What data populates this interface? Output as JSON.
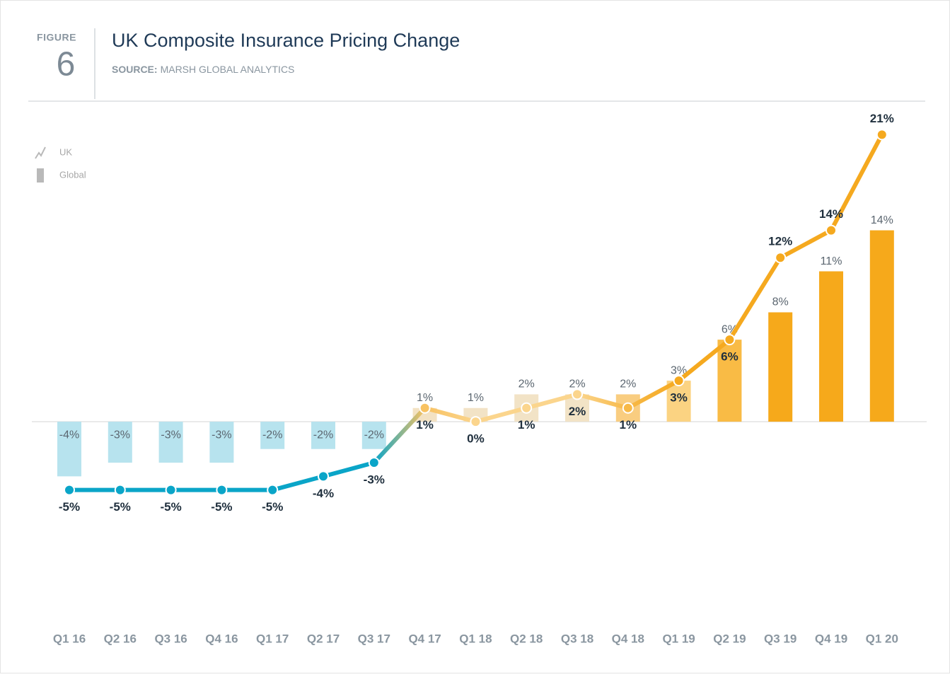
{
  "figure_label": "FIGURE",
  "figure_number": "6",
  "chart_data": {
    "type": "bar_line",
    "title": "UK Composite Insurance Pricing Change",
    "source_label": "SOURCE:",
    "source": "MARSH GLOBAL ANALYTICS",
    "categories": [
      "Q1 16",
      "Q2 16",
      "Q3 16",
      "Q4 16",
      "Q1 17",
      "Q2 17",
      "Q3 17",
      "Q4 17",
      "Q1 18",
      "Q2 18",
      "Q3 18",
      "Q4 18",
      "Q1 19",
      "Q2 19",
      "Q3 19",
      "Q4 19",
      "Q1 20"
    ],
    "series": [
      {
        "name": "UK",
        "kind": "line",
        "color": "#f5a91f",
        "values": [
          -5,
          -5,
          -5,
          -5,
          -5,
          -4,
          -3,
          1,
          0,
          1,
          2,
          1,
          3,
          6,
          12,
          14,
          21
        ],
        "value_labels": [
          "-5%",
          "-5%",
          "-5%",
          "-5%",
          "-5%",
          "-4%",
          "-3%",
          "1%",
          "0%",
          "1%",
          "2%",
          "1%",
          "3%",
          "6%",
          "12%",
          "14%",
          "21%"
        ],
        "point_colors": [
          "#0aa5c8",
          "#0aa5c8",
          "#0aa5c8",
          "#0aa5c8",
          "#0aa5c8",
          "#0aa5c8",
          "#0aa5c8",
          "#f8c262",
          "#fbd58d",
          "#fbd58d",
          "#fbd58d",
          "#f7b948",
          "#f5a91f",
          "#f5a91f",
          "#f5a91f",
          "#f5a91f",
          "#f5a91f"
        ]
      },
      {
        "name": "Global",
        "kind": "bar",
        "color": "#b9b9b9",
        "values": [
          -4,
          -3,
          -3,
          -3,
          -2,
          -2,
          -2,
          1,
          1,
          2,
          2,
          2,
          3,
          6,
          8,
          11,
          14
        ],
        "value_labels": [
          "-4%",
          "-3%",
          "-3%",
          "-3%",
          "-2%",
          "-2%",
          "-2%",
          "1%",
          "1%",
          "2%",
          "2%",
          "2%",
          "3%",
          "6%",
          "8%",
          "11%",
          "14%"
        ],
        "point_colors": [
          "#b7e3ee",
          "#b7e3ee",
          "#b7e3ee",
          "#b7e3ee",
          "#b7e3ee",
          "#b7e3ee",
          "#b7e3ee",
          "#f3e2c3",
          "#f2e3c6",
          "#f2e3c6",
          "#f2e3c6",
          "#f9cd80",
          "#fbd382",
          "#f9bb45",
          "#f6a91b",
          "#f6a91b",
          "#f6a91b"
        ]
      }
    ],
    "ylim": [
      -6,
      22
    ]
  }
}
